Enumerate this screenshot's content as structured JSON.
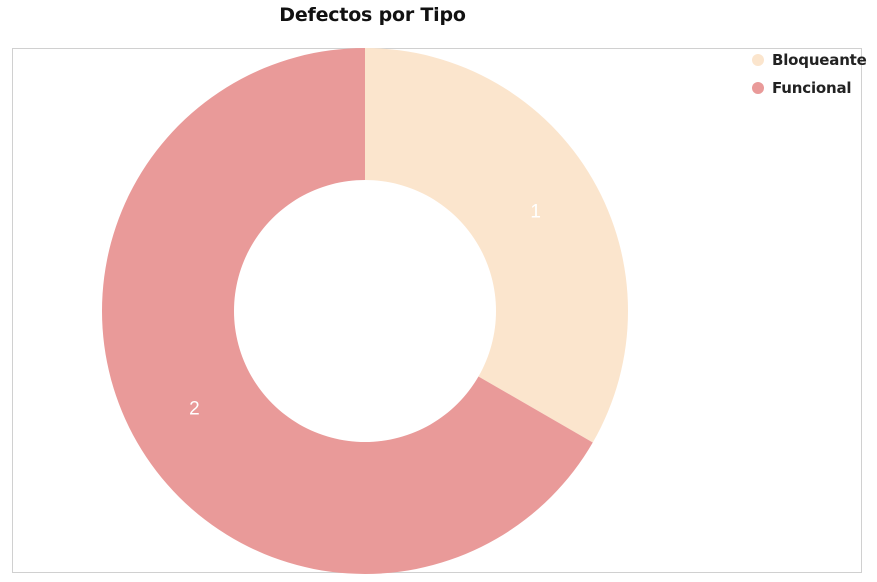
{
  "chart_data": {
    "type": "pie",
    "title": "Defectos por Tipo",
    "donut": true,
    "categories": [
      "Bloqueante",
      "Funcional"
    ],
    "values": [
      1,
      2
    ],
    "colors": [
      "#fbe5cd",
      "#e99a99"
    ],
    "data_labels": [
      "1",
      "2"
    ],
    "legend": {
      "position": "top-right",
      "entries": [
        "Bloqueante",
        "Funcional"
      ]
    }
  }
}
